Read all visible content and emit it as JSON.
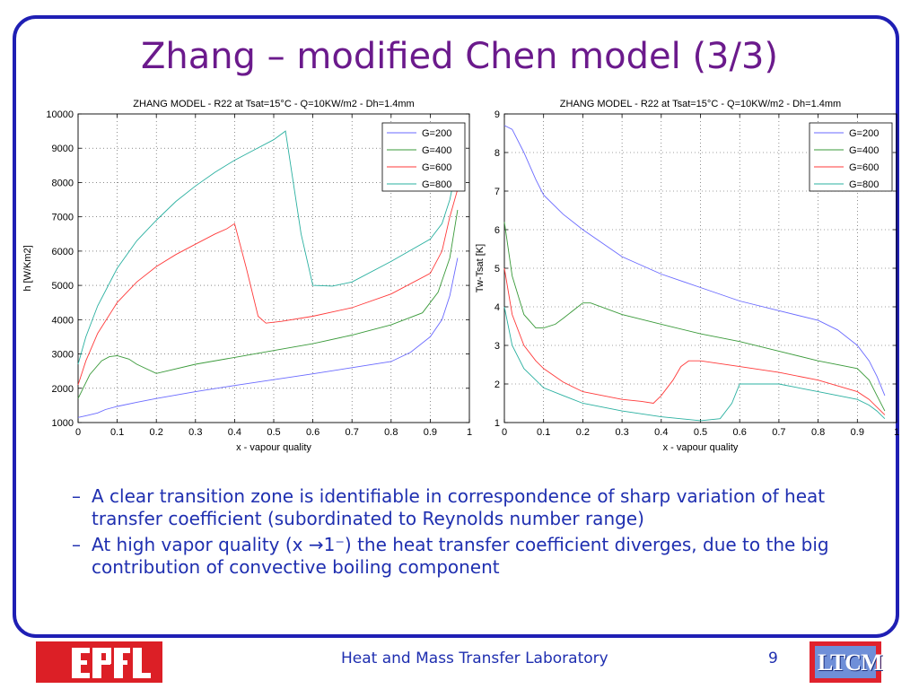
{
  "slide": {
    "title": "Zhang – modified Chen model (3/3)",
    "bullets": [
      "A clear transition zone is identifiable in correspondence of sharp variation of heat transfer coefficient (subordinated to Reynolds number range)",
      "At high vapor quality (x →1⁻) the heat transfer coefficient diverges, due to the big contribution of convective boiling component"
    ],
    "bullet_dash": "–",
    "footer_lab": "Heat and Mass Transfer Laboratory",
    "page_number": "9",
    "logo_left_text": "EPFL",
    "logo_right_text": "LTCM"
  },
  "colors": {
    "frame": "#1f1fb4",
    "title": "#6b1a8c",
    "body_text": "#1f2fb0",
    "G200": "#6a6aff",
    "G400": "#3a9a3a",
    "G600": "#ff3a3a",
    "G800": "#2ab0a0"
  },
  "chart_data": [
    {
      "type": "line",
      "title": "ZHANG MODEL - R22 at Tsat=15°C - Q=10KW/m2 - Dh=1.4mm",
      "xlabel": "x - vapour quality",
      "ylabel": "h [W/Km2]",
      "xlim": [
        0,
        1
      ],
      "ylim": [
        1000,
        10000
      ],
      "xticks": [
        "0",
        "0.1",
        "0.2",
        "0.3",
        "0.4",
        "0.5",
        "0.6",
        "0.7",
        "0.8",
        "0.9",
        "1"
      ],
      "yticks": [
        "1000",
        "2000",
        "3000",
        "4000",
        "5000",
        "6000",
        "7000",
        "8000",
        "9000",
        "10000"
      ],
      "grid": true,
      "legend_position": "top-right",
      "series": [
        {
          "name": "G=200",
          "color": "#6a6aff",
          "x": [
            0,
            0.02,
            0.05,
            0.07,
            0.1,
            0.15,
            0.2,
            0.3,
            0.4,
            0.5,
            0.6,
            0.7,
            0.8,
            0.85,
            0.9,
            0.93,
            0.95,
            0.97
          ],
          "y": [
            1150,
            1200,
            1280,
            1380,
            1470,
            1590,
            1700,
            1900,
            2080,
            2250,
            2420,
            2600,
            2780,
            3050,
            3500,
            4000,
            4700,
            5800
          ]
        },
        {
          "name": "G=400",
          "color": "#3a9a3a",
          "x": [
            0,
            0.03,
            0.06,
            0.08,
            0.1,
            0.13,
            0.15,
            0.2,
            0.3,
            0.4,
            0.5,
            0.6,
            0.7,
            0.8,
            0.88,
            0.92,
            0.95,
            0.97
          ],
          "y": [
            1700,
            2400,
            2800,
            2920,
            2950,
            2850,
            2700,
            2430,
            2700,
            2900,
            3100,
            3300,
            3550,
            3850,
            4200,
            4800,
            5800,
            7200
          ]
        },
        {
          "name": "G=600",
          "color": "#ff3a3a",
          "x": [
            0,
            0.02,
            0.05,
            0.1,
            0.15,
            0.2,
            0.25,
            0.3,
            0.35,
            0.38,
            0.4,
            0.43,
            0.46,
            0.48,
            0.52,
            0.6,
            0.7,
            0.8,
            0.9,
            0.93,
            0.95,
            0.97
          ],
          "y": [
            2100,
            2800,
            3600,
            4500,
            5100,
            5550,
            5900,
            6200,
            6500,
            6650,
            6800,
            5500,
            4100,
            3900,
            3950,
            4100,
            4350,
            4750,
            5350,
            6000,
            7000,
            7800
          ]
        },
        {
          "name": "G=800",
          "color": "#2ab0a0",
          "x": [
            0,
            0.02,
            0.05,
            0.1,
            0.15,
            0.2,
            0.25,
            0.3,
            0.35,
            0.4,
            0.45,
            0.5,
            0.53,
            0.57,
            0.6,
            0.65,
            0.7,
            0.8,
            0.9,
            0.93,
            0.95,
            0.97
          ],
          "y": [
            2700,
            3500,
            4400,
            5500,
            6300,
            6900,
            7450,
            7900,
            8300,
            8650,
            8950,
            9250,
            9500,
            6500,
            5000,
            4980,
            5100,
            5700,
            6350,
            6800,
            7500,
            8600
          ]
        }
      ]
    },
    {
      "type": "line",
      "title": "ZHANG MODEL - R22 at Tsat=15°C - Q=10KW/m2 - Dh=1.4mm",
      "xlabel": "x - vapour quality",
      "ylabel": "Tw-Tsat [K]",
      "xlim": [
        0,
        1
      ],
      "ylim": [
        1,
        9
      ],
      "xticks": [
        "0",
        "0.1",
        "0.2",
        "0.3",
        "0.4",
        "0.5",
        "0.6",
        "0.7",
        "0.8",
        "0.9",
        "1"
      ],
      "yticks": [
        "1",
        "2",
        "3",
        "4",
        "5",
        "6",
        "7",
        "8",
        "9"
      ],
      "grid": true,
      "legend_position": "top-right",
      "series": [
        {
          "name": "G=200",
          "color": "#6a6aff",
          "x": [
            0,
            0.02,
            0.05,
            0.08,
            0.1,
            0.15,
            0.2,
            0.3,
            0.4,
            0.5,
            0.6,
            0.7,
            0.8,
            0.85,
            0.9,
            0.93,
            0.95,
            0.97
          ],
          "y": [
            8.7,
            8.6,
            8.0,
            7.3,
            6.9,
            6.4,
            6.0,
            5.3,
            4.85,
            4.5,
            4.15,
            3.9,
            3.65,
            3.4,
            3.0,
            2.6,
            2.2,
            1.7
          ]
        },
        {
          "name": "G=400",
          "color": "#3a9a3a",
          "x": [
            0,
            0.02,
            0.05,
            0.08,
            0.1,
            0.13,
            0.15,
            0.2,
            0.22,
            0.3,
            0.4,
            0.5,
            0.6,
            0.7,
            0.8,
            0.9,
            0.93,
            0.95,
            0.97
          ],
          "y": [
            6.2,
            4.8,
            3.8,
            3.45,
            3.45,
            3.55,
            3.7,
            4.1,
            4.1,
            3.8,
            3.55,
            3.3,
            3.1,
            2.85,
            2.6,
            2.4,
            2.1,
            1.7,
            1.3
          ]
        },
        {
          "name": "G=600",
          "color": "#ff3a3a",
          "x": [
            0,
            0.02,
            0.05,
            0.08,
            0.1,
            0.15,
            0.2,
            0.3,
            0.35,
            0.38,
            0.4,
            0.43,
            0.45,
            0.47,
            0.5,
            0.6,
            0.7,
            0.8,
            0.9,
            0.93,
            0.95,
            0.97
          ],
          "y": [
            5.0,
            3.8,
            3.0,
            2.6,
            2.4,
            2.05,
            1.8,
            1.6,
            1.55,
            1.5,
            1.7,
            2.1,
            2.45,
            2.6,
            2.6,
            2.45,
            2.3,
            2.1,
            1.8,
            1.6,
            1.4,
            1.2
          ]
        },
        {
          "name": "G=800",
          "color": "#2ab0a0",
          "x": [
            0,
            0.02,
            0.05,
            0.08,
            0.1,
            0.15,
            0.2,
            0.3,
            0.4,
            0.5,
            0.55,
            0.58,
            0.6,
            0.65,
            0.7,
            0.8,
            0.9,
            0.93,
            0.95,
            0.97
          ],
          "y": [
            4.0,
            3.0,
            2.4,
            2.1,
            1.9,
            1.7,
            1.5,
            1.3,
            1.15,
            1.05,
            1.1,
            1.5,
            2.0,
            2.0,
            2.0,
            1.8,
            1.6,
            1.45,
            1.3,
            1.1
          ]
        }
      ]
    }
  ]
}
